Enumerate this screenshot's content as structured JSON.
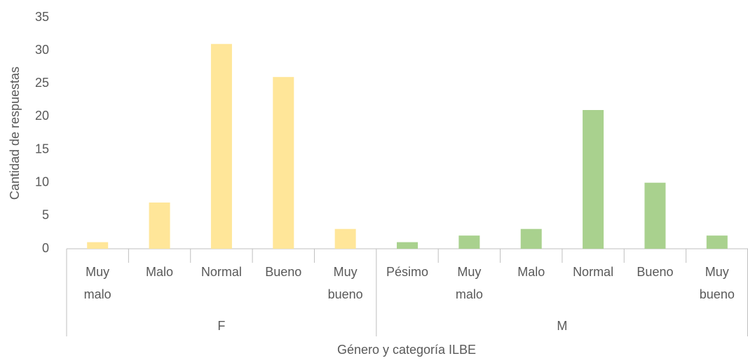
{
  "chart_data": {
    "type": "bar",
    "y_label": "Cantidad de respuestas",
    "x_label": "Género y categoría ILBE",
    "groups": [
      {
        "name": "F",
        "color": "#FFE699",
        "categories": [
          "Muy malo",
          "Malo",
          "Normal",
          "Bueno",
          "Muy bueno"
        ],
        "values": [
          1,
          7,
          31,
          26,
          3
        ]
      },
      {
        "name": "M",
        "color": "#A9D18E",
        "categories": [
          "Pésimo",
          "Muy malo",
          "Malo",
          "Normal",
          "Bueno",
          "Muy bueno"
        ],
        "values": [
          1,
          2,
          3,
          21,
          10,
          2
        ]
      }
    ],
    "ylim": [
      0,
      35
    ],
    "yticks": [
      0,
      5,
      10,
      15,
      20,
      25,
      30,
      35
    ],
    "grid": false
  }
}
